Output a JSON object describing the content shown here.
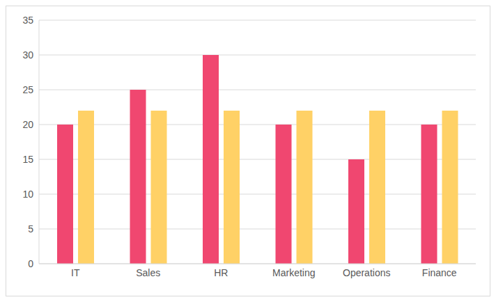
{
  "chart_data": {
    "type": "bar",
    "categories": [
      "IT",
      "Sales",
      "HR",
      "Marketing",
      "Operations",
      "Finance"
    ],
    "series": [
      {
        "color": "#f04770",
        "values": [
          20,
          25,
          30,
          20,
          15,
          20
        ]
      },
      {
        "color": "#ffd166",
        "values": [
          22,
          22,
          22,
          22,
          22,
          22
        ]
      }
    ],
    "ylim": [
      0,
      35
    ],
    "yticks": [
      0,
      5,
      10,
      15,
      20,
      25,
      30,
      35
    ],
    "grid": true
  }
}
